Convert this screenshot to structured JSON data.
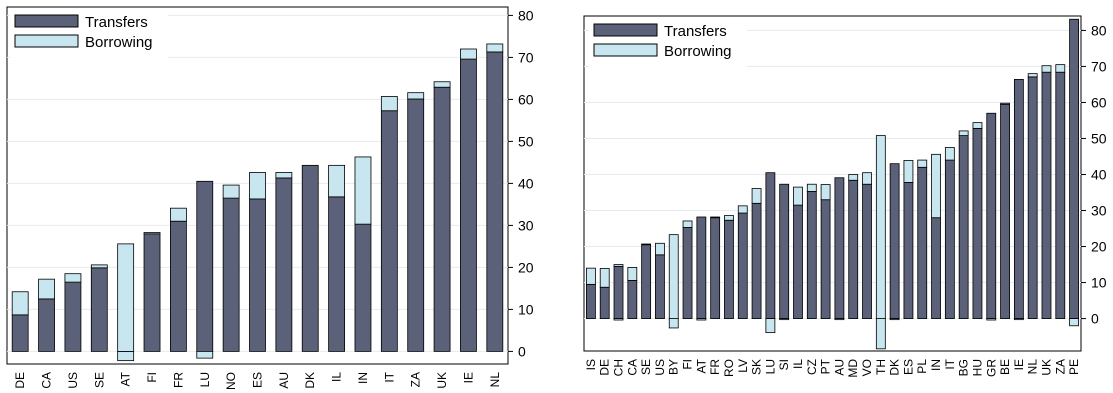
{
  "colors": {
    "transfers": "#5b6178",
    "borrowing": "#c7e6ef",
    "edge": "#000000",
    "grid": "#e6ecef"
  },
  "chart_data": [
    {
      "type": "bar",
      "stacked": true,
      "legend": [
        "Transfers",
        "Borrowing"
      ],
      "legend_position": "top-left",
      "y_axis_side": "right",
      "ylim": [
        -3,
        82
      ],
      "yticks": [
        0,
        10,
        20,
        30,
        40,
        50,
        60,
        70,
        80
      ],
      "grid": true,
      "categories": [
        "DE",
        "CA",
        "US",
        "SE",
        "AT",
        "FI",
        "FR",
        "LU",
        "NO",
        "ES",
        "AU",
        "DK",
        "IL",
        "IN",
        "IT",
        "ZA",
        "UK",
        "IE",
        "NL"
      ],
      "series": [
        {
          "name": "Transfers",
          "values": [
            8.7,
            12.5,
            16.5,
            19.9,
            0,
            28.0,
            31.0,
            40.5,
            36.5,
            36.3,
            41.3,
            44.3,
            36.8,
            30.3,
            57.3,
            60.1,
            62.9,
            69.6,
            71.3
          ]
        },
        {
          "name": "Borrowing",
          "values": [
            5.5,
            4.7,
            2.0,
            0.7,
            25.6,
            0.3,
            3.1,
            -1.6,
            3.1,
            6.3,
            1.3,
            0,
            7.5,
            16.0,
            3.4,
            1.5,
            1.3,
            2.4,
            1.9
          ]
        }
      ],
      "transfers_below_zero": [
        0,
        0,
        0,
        0,
        -2.2,
        0,
        0,
        0,
        0,
        0,
        0,
        0,
        0,
        0,
        0,
        0,
        0,
        0,
        0
      ]
    },
    {
      "type": "bar",
      "stacked": true,
      "legend": [
        "Transfers",
        "Borrowing"
      ],
      "legend_position": "top-left",
      "y_axis_side": "right",
      "ylim": [
        -9,
        84
      ],
      "yticks": [
        0,
        10,
        20,
        30,
        40,
        50,
        60,
        70,
        80
      ],
      "grid": true,
      "categories": [
        "IS",
        "DE",
        "CH",
        "CA",
        "SE",
        "US",
        "BY",
        "FI",
        "AT",
        "FR",
        "RO",
        "LV",
        "SK",
        "LU",
        "SI",
        "IL",
        "CZ",
        "PT",
        "AU",
        "MD",
        "VO",
        "TH",
        "DK",
        "ES",
        "PL",
        "IN",
        "IT",
        "BG",
        "HU",
        "GR",
        "BE",
        "IE",
        "NL",
        "UK",
        "ZA",
        "PE"
      ],
      "series": [
        {
          "name": "Transfers",
          "values": [
            9.5,
            8.7,
            14.5,
            10.6,
            20.5,
            17.7,
            0,
            25.3,
            28.2,
            28.0,
            27.3,
            29.3,
            32.0,
            40.5,
            37.3,
            31.5,
            35.3,
            33.0,
            39.1,
            38.4,
            37.3,
            0,
            43.0,
            37.8,
            42.0,
            28.0,
            44.0,
            50.8,
            52.8,
            57.0,
            59.5,
            66.4,
            67.1,
            68.4,
            68.4,
            83.1
          ]
        },
        {
          "name": "Borrowing",
          "values": [
            4.5,
            5.2,
            0.5,
            3.6,
            0.2,
            3.2,
            23.3,
            1.8,
            0,
            0.2,
            1.3,
            2.0,
            4.1,
            -3.9,
            0,
            5.0,
            2.0,
            4.2,
            0,
            1.6,
            3.2,
            50.8,
            0,
            6.1,
            2.0,
            17.6,
            3.5,
            1.3,
            1.6,
            0,
            0.3,
            0,
            0.9,
            1.8,
            2.1,
            -2.0
          ]
        }
      ],
      "transfers_below_zero": [
        0,
        0,
        -0.4,
        0,
        0,
        0,
        -2.6,
        0,
        -0.4,
        0,
        0,
        0,
        0,
        0,
        -0.3,
        0,
        0,
        0,
        -0.3,
        0,
        0,
        -8.4,
        -0.3,
        0,
        0,
        0,
        0,
        0,
        0,
        -0.4,
        0,
        -0.3,
        0,
        0,
        0,
        0
      ]
    }
  ]
}
